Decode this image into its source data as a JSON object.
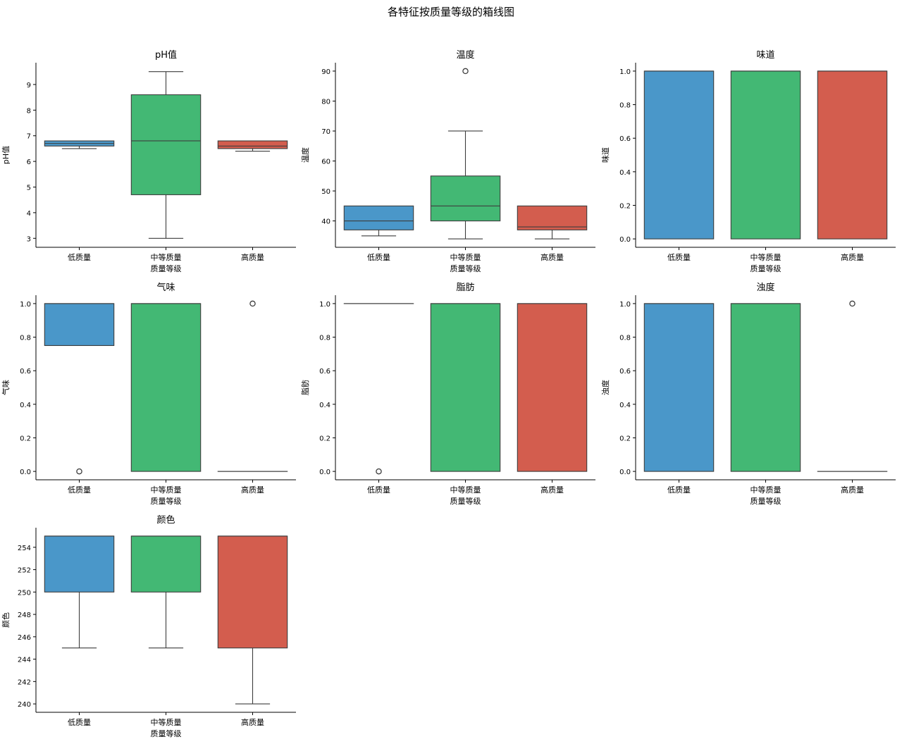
{
  "suptitle": "各特征按质量等级的箱线图",
  "colors": [
    "#4a97c9",
    "#43b874",
    "#d35d4e"
  ],
  "chart_data": [
    {
      "type": "box",
      "title": "pH值",
      "xlabel": "质量等级",
      "ylabel": "pH值",
      "categories": [
        "低质量",
        "中等质量",
        "高质量"
      ],
      "ylim": [
        2.65,
        9.85
      ],
      "yticks": [
        3,
        4,
        5,
        6,
        7,
        8,
        9
      ],
      "tick_decimals": 0,
      "boxes": [
        {
          "whislo": 6.5,
          "q1": 6.6,
          "med": 6.7,
          "q3": 6.8,
          "whishi": 6.8,
          "fliers": []
        },
        {
          "whislo": 3.0,
          "q1": 4.7,
          "med": 6.8,
          "q3": 8.6,
          "whishi": 9.5,
          "fliers": []
        },
        {
          "whislo": 6.4,
          "q1": 6.5,
          "med": 6.6,
          "q3": 6.8,
          "whishi": 6.8,
          "fliers": []
        }
      ]
    },
    {
      "type": "box",
      "title": "温度",
      "xlabel": "质量等级",
      "ylabel": "温度",
      "categories": [
        "低质量",
        "中等质量",
        "高质量"
      ],
      "ylim": [
        31.2,
        92.8
      ],
      "yticks": [
        40,
        50,
        60,
        70,
        80,
        90
      ],
      "tick_decimals": 0,
      "boxes": [
        {
          "whislo": 35,
          "q1": 37,
          "med": 40,
          "q3": 45,
          "whishi": 45,
          "fliers": []
        },
        {
          "whislo": 34,
          "q1": 40,
          "med": 45,
          "q3": 55,
          "whishi": 70,
          "fliers": [
            90
          ]
        },
        {
          "whislo": 34,
          "q1": 37,
          "med": 38,
          "q3": 45,
          "whishi": 45,
          "fliers": []
        }
      ]
    },
    {
      "type": "box",
      "title": "味道",
      "xlabel": "质量等级",
      "ylabel": "味道",
      "categories": [
        "低质量",
        "中等质量",
        "高质量"
      ],
      "ylim": [
        -0.05,
        1.05
      ],
      "yticks": [
        0.0,
        0.2,
        0.4,
        0.6,
        0.8,
        1.0
      ],
      "tick_decimals": 1,
      "boxes": [
        {
          "whislo": 0,
          "q1": 0,
          "med": 1,
          "q3": 1,
          "whishi": 1,
          "fliers": []
        },
        {
          "whislo": 0,
          "q1": 0,
          "med": 1,
          "q3": 1,
          "whishi": 1,
          "fliers": []
        },
        {
          "whislo": 0,
          "q1": 0,
          "med": 1,
          "q3": 1,
          "whishi": 1,
          "fliers": []
        }
      ]
    },
    {
      "type": "box",
      "title": "气味",
      "xlabel": "质量等级",
      "ylabel": "气味",
      "categories": [
        "低质量",
        "中等质量",
        "高质量"
      ],
      "ylim": [
        -0.05,
        1.05
      ],
      "yticks": [
        0.0,
        0.2,
        0.4,
        0.6,
        0.8,
        1.0
      ],
      "tick_decimals": 1,
      "boxes": [
        {
          "whislo": 0.75,
          "q1": 0.75,
          "med": 1,
          "q3": 1,
          "whishi": 1,
          "fliers": [
            0
          ]
        },
        {
          "whislo": 0,
          "q1": 0,
          "med": 1,
          "q3": 1,
          "whishi": 1,
          "fliers": []
        },
        {
          "whislo": 0,
          "q1": 0,
          "med": 0,
          "q3": 0,
          "whishi": 0,
          "fliers": [
            1
          ]
        }
      ]
    },
    {
      "type": "box",
      "title": "脂肪",
      "xlabel": "质量等级",
      "ylabel": "脂肪",
      "categories": [
        "低质量",
        "中等质量",
        "高质量"
      ],
      "ylim": [
        -0.05,
        1.05
      ],
      "yticks": [
        0.0,
        0.2,
        0.4,
        0.6,
        0.8,
        1.0
      ],
      "tick_decimals": 1,
      "boxes": [
        {
          "whislo": 1,
          "q1": 1,
          "med": 1,
          "q3": 1,
          "whishi": 1,
          "fliers": [
            0
          ]
        },
        {
          "whislo": 0,
          "q1": 0,
          "med": 1,
          "q3": 1,
          "whishi": 1,
          "fliers": []
        },
        {
          "whislo": 0,
          "q1": 0,
          "med": 1,
          "q3": 1,
          "whishi": 1,
          "fliers": []
        }
      ]
    },
    {
      "type": "box",
      "title": "浊度",
      "xlabel": "质量等级",
      "ylabel": "浊度",
      "categories": [
        "低质量",
        "中等质量",
        "高质量"
      ],
      "ylim": [
        -0.05,
        1.05
      ],
      "yticks": [
        0.0,
        0.2,
        0.4,
        0.6,
        0.8,
        1.0
      ],
      "tick_decimals": 1,
      "boxes": [
        {
          "whislo": 0,
          "q1": 0,
          "med": 1,
          "q3": 1,
          "whishi": 1,
          "fliers": []
        },
        {
          "whislo": 0,
          "q1": 0,
          "med": 1,
          "q3": 1,
          "whishi": 1,
          "fliers": []
        },
        {
          "whislo": 0,
          "q1": 0,
          "med": 0,
          "q3": 0,
          "whishi": 0,
          "fliers": [
            1
          ]
        }
      ]
    },
    {
      "type": "box",
      "title": "颜色",
      "xlabel": "质量等级",
      "ylabel": "颜色",
      "categories": [
        "低质量",
        "中等质量",
        "高质量"
      ],
      "ylim": [
        239.25,
        255.75
      ],
      "yticks": [
        240,
        242,
        244,
        246,
        248,
        250,
        252,
        254
      ],
      "tick_decimals": 0,
      "boxes": [
        {
          "whislo": 245,
          "q1": 250,
          "med": 255,
          "q3": 255,
          "whishi": 255,
          "fliers": []
        },
        {
          "whislo": 245,
          "q1": 250,
          "med": 255,
          "q3": 255,
          "whishi": 255,
          "fliers": []
        },
        {
          "whislo": 240,
          "q1": 245,
          "med": 255,
          "q3": 255,
          "whishi": 255,
          "fliers": []
        }
      ]
    }
  ]
}
